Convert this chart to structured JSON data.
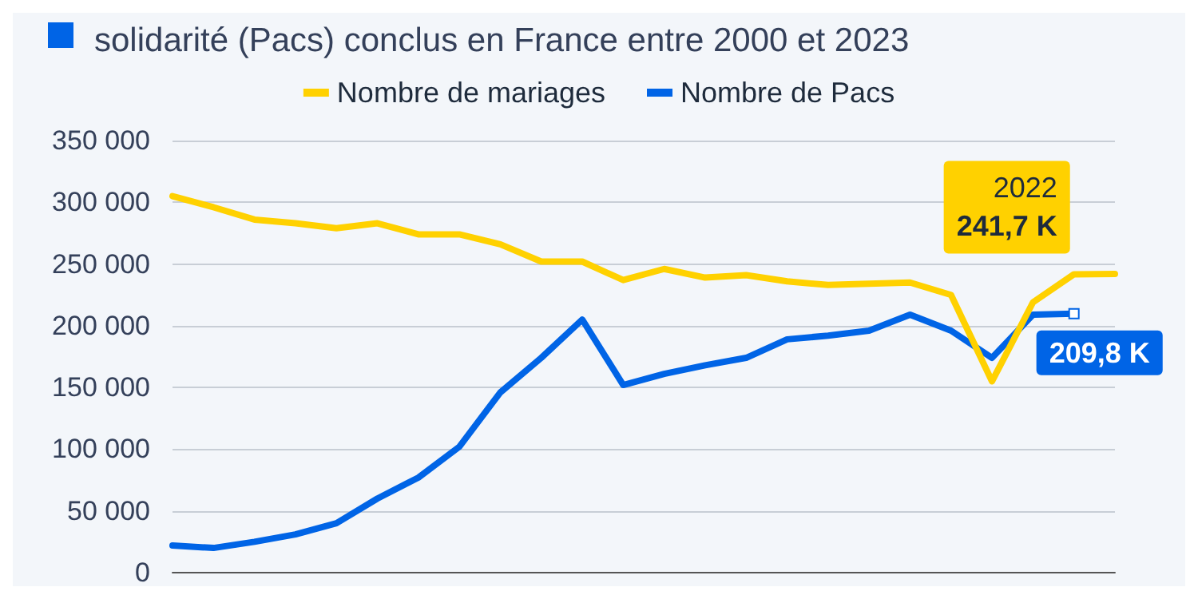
{
  "chart_data": {
    "type": "line",
    "title": "solidarité (Pacs) conclus en France entre 2000 et 2023",
    "categories": [
      null,
      null,
      null,
      null,
      null,
      null,
      null,
      null,
      null,
      null,
      null,
      null,
      null,
      null,
      null,
      null,
      null,
      null,
      null,
      null,
      null,
      null,
      null,
      null
    ],
    "series": [
      {
        "name": "Nombre de mariages",
        "color": "#ffd100",
        "values": [
          305000,
          296000,
          286000,
          283000,
          279000,
          283000,
          274000,
          274000,
          266000,
          252000,
          252000,
          237000,
          246000,
          239000,
          241000,
          236000,
          233000,
          234000,
          235000,
          225000,
          155000,
          219000,
          241700,
          242000
        ],
        "value_labels": [
          null,
          null,
          null,
          null,
          null,
          null,
          null,
          null,
          null,
          null,
          null,
          null,
          null,
          null,
          null,
          null,
          null,
          null,
          null,
          null,
          null,
          null,
          "241,7 K",
          null
        ]
      },
      {
        "name": "Nombre de Pacs",
        "color": "#0064e6",
        "values": [
          22000,
          20000,
          25000,
          31000,
          40000,
          60000,
          77000,
          102000,
          146000,
          174000,
          205000,
          152000,
          161000,
          168000,
          174000,
          189000,
          192000,
          196000,
          209000,
          196000,
          174000,
          209000,
          209800,
          null
        ],
        "value_labels": [
          null,
          null,
          null,
          null,
          null,
          null,
          null,
          null,
          null,
          null,
          null,
          null,
          null,
          null,
          null,
          null,
          null,
          null,
          null,
          null,
          null,
          null,
          "209,8 K",
          null
        ]
      }
    ],
    "annotations": [
      "2022"
    ],
    "ylim": [
      0,
      350000
    ],
    "yticks": [
      {
        "value": 0,
        "label": "0"
      },
      {
        "value": 50000,
        "label": "50 000"
      },
      {
        "value": 100000,
        "label": "100 000"
      },
      {
        "value": 150000,
        "label": "150 000"
      },
      {
        "value": 200000,
        "label": "200 000"
      },
      {
        "value": 250000,
        "label": "250 000"
      },
      {
        "value": 300000,
        "label": "300 000"
      },
      {
        "value": 350000,
        "label": "350 000"
      }
    ],
    "tick_labels": "y",
    "grid": "y",
    "legend": "top",
    "marker": "none",
    "line_style": "solid"
  }
}
